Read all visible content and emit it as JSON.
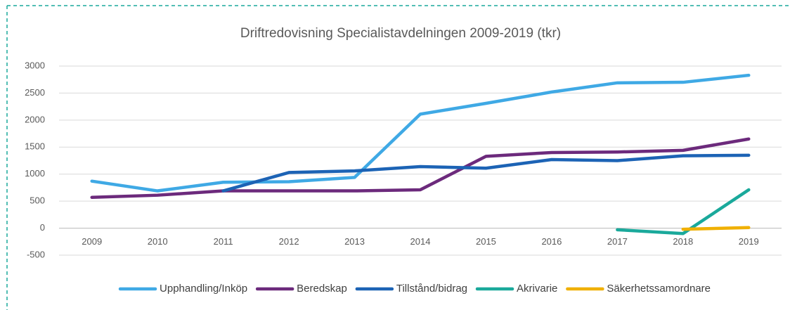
{
  "chart_data": {
    "type": "line",
    "title": "Driftredovisning Specialistavdelningen 2009-2019 (tkr)",
    "categories": [
      "2009",
      "2010",
      "2011",
      "2012",
      "2013",
      "2014",
      "2015",
      "2016",
      "2017",
      "2018",
      "2019"
    ],
    "series": [
      {
        "name": "Upphandling/Inköp",
        "color": "#3fa9e5",
        "values": [
          870,
          690,
          850,
          860,
          940,
          2110,
          2310,
          2520,
          2690,
          2700,
          2830
        ]
      },
      {
        "name": "Beredskap",
        "color": "#6c2a7c",
        "values": [
          570,
          610,
          690,
          690,
          690,
          710,
          1330,
          1400,
          1410,
          1440,
          1650
        ]
      },
      {
        "name": "Tillstånd/bidrag",
        "color": "#1c63b5",
        "values": [
          null,
          null,
          690,
          1030,
          1060,
          1140,
          1110,
          1270,
          1250,
          1340,
          1350
        ]
      },
      {
        "name": "Akrivarie",
        "color": "#1aa99b",
        "values": [
          null,
          null,
          null,
          null,
          null,
          null,
          null,
          null,
          -30,
          -100,
          710
        ]
      },
      {
        "name": "Säkerhetssamordnare",
        "color": "#f0b000",
        "values": [
          null,
          null,
          null,
          null,
          null,
          null,
          null,
          null,
          null,
          -20,
          10
        ]
      }
    ],
    "ylim": [
      -500,
      3000
    ],
    "yticks": [
      -500,
      0,
      500,
      1000,
      1500,
      2000,
      2500,
      3000
    ],
    "grid": true,
    "legend": "bottom"
  }
}
